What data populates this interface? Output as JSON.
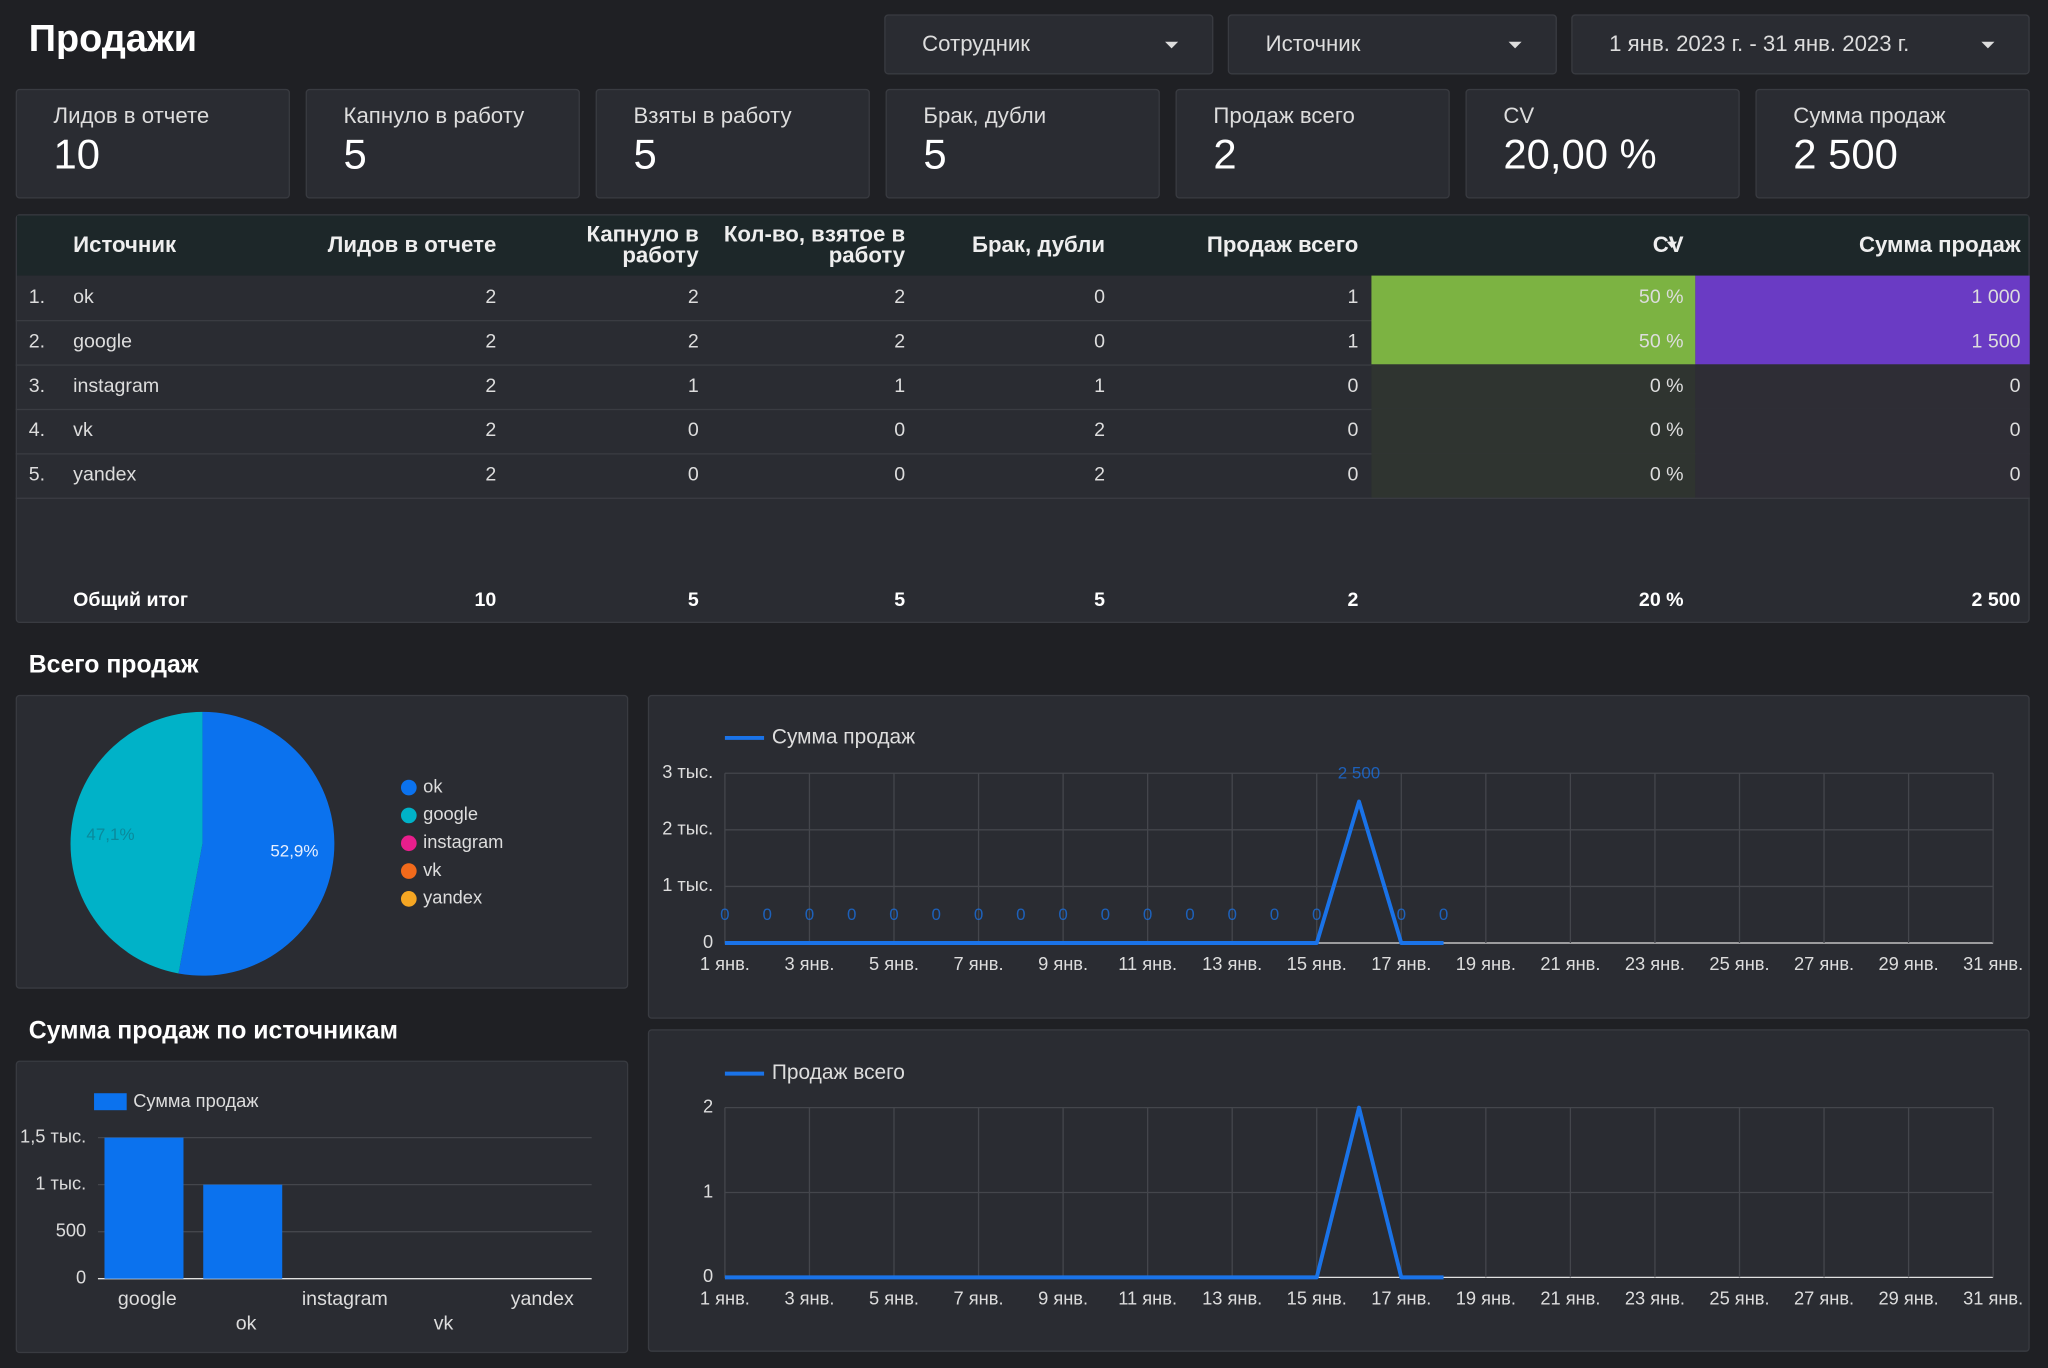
{
  "header": {
    "title": "Продажи",
    "filters": [
      "Сотрудник",
      "Источник",
      "1 янв. 2023 г. - 31 янв. 2023 г."
    ]
  },
  "kpis": [
    {
      "label": "Лидов в отчете",
      "value": "10"
    },
    {
      "label": "Капнуло в работу",
      "value": "5"
    },
    {
      "label": "Взяты в работу",
      "value": "5"
    },
    {
      "label": "Брак, дубли",
      "value": "5"
    },
    {
      "label": "Продаж всего",
      "value": "2"
    },
    {
      "label": "CV",
      "value": "20,00 %"
    },
    {
      "label": "Сумма продаж",
      "value": "2 500"
    }
  ],
  "table": {
    "columns": [
      "Источник",
      "Лидов в отчете",
      "Капнуло в работу",
      "Кол-во, взятое в работу",
      "Брак, дубли",
      "Продаж всего",
      "CV",
      "Сумма продаж"
    ],
    "rows": [
      {
        "index": "1.",
        "cells": [
          "ok",
          "2",
          "2",
          "2",
          "0",
          "1",
          "50 %",
          "1 000"
        ]
      },
      {
        "index": "2.",
        "cells": [
          "google",
          "2",
          "2",
          "2",
          "0",
          "1",
          "50 %",
          "1 500"
        ]
      },
      {
        "index": "3.",
        "cells": [
          "instagram",
          "2",
          "1",
          "1",
          "1",
          "0",
          "0 %",
          "0"
        ]
      },
      {
        "index": "4.",
        "cells": [
          "vk",
          "2",
          "0",
          "0",
          "2",
          "0",
          "0 %",
          "0"
        ]
      },
      {
        "index": "5.",
        "cells": [
          "yandex",
          "2",
          "0",
          "0",
          "2",
          "0",
          "0 %",
          "0"
        ]
      }
    ],
    "total": [
      "Общий итог",
      "10",
      "5",
      "5",
      "5",
      "2",
      "20 %",
      "2 500"
    ]
  },
  "sections": [
    "Всего продаж",
    "Сумма продаж по источникам"
  ],
  "chart_data": [
    {
      "type": "pie",
      "categories": [
        "ok",
        "google",
        "instagram",
        "vk",
        "yandex"
      ],
      "values": [
        52.9,
        47.1,
        0,
        0,
        0
      ],
      "value_labels": [
        "52,9%",
        "47,1%",
        null,
        null,
        null
      ],
      "colors": [
        "#0b72ee",
        "#00b2c8",
        "#e91e8c",
        "#f26a1b",
        "#f5a623"
      ]
    },
    {
      "type": "line",
      "categories": [
        "1 янв.",
        null,
        "3 янв.",
        null,
        "5 янв.",
        null,
        "7 янв.",
        null,
        "9 янв.",
        null,
        "11 янв.",
        null,
        "13 янв.",
        null,
        "15 янв.",
        null,
        "17 янв.",
        null,
        "19 янв.",
        null,
        "21 янв.",
        null,
        "23 янв.",
        null,
        "25 янв.",
        null,
        "27 янв.",
        null,
        "29 янв.",
        null,
        "31 янв."
      ],
      "series": [
        {
          "name": "Сумма продаж",
          "color": "#1a73e8",
          "values": [
            0,
            0,
            0,
            0,
            0,
            0,
            0,
            0,
            0,
            0,
            0,
            0,
            0,
            0,
            0,
            2500,
            0,
            0,
            null,
            null,
            null,
            null,
            null,
            null,
            null,
            null,
            null,
            null,
            null,
            null,
            null
          ],
          "value_labels": [
            "0",
            "0",
            "0",
            "0",
            "0",
            "0",
            "0",
            "0",
            "0",
            "0",
            "0",
            "0",
            "0",
            "0",
            "0",
            "2 500",
            "0",
            "0",
            null,
            null,
            null,
            null,
            null,
            null,
            null,
            null,
            null,
            null,
            null,
            null,
            null
          ]
        }
      ],
      "ylim": [
        0,
        3000
      ],
      "yticks": [
        0,
        {
          "value": 1000,
          "label": "1 тыс."
        },
        {
          "value": 2000,
          "label": "2 тыс."
        },
        {
          "value": 3000,
          "label": "3 тыс."
        }
      ],
      "grid": true
    },
    {
      "type": "line",
      "categories": [
        "1 янв.",
        null,
        "3 янв.",
        null,
        "5 янв.",
        null,
        "7 янв.",
        null,
        "9 янв.",
        null,
        "11 янв.",
        null,
        "13 янв.",
        null,
        "15 янв.",
        null,
        "17 янв.",
        null,
        "19 янв.",
        null,
        "21 янв.",
        null,
        "23 янв.",
        null,
        "25 янв.",
        null,
        "27 янв.",
        null,
        "29 янв.",
        null,
        "31 янв."
      ],
      "series": [
        {
          "name": "Продаж всего",
          "color": "#1a73e8",
          "values": [
            0,
            0,
            0,
            0,
            0,
            0,
            0,
            0,
            0,
            0,
            0,
            0,
            0,
            0,
            0,
            2,
            0,
            0,
            null,
            null,
            null,
            null,
            null,
            null,
            null,
            null,
            null,
            null,
            null,
            null,
            null
          ]
        }
      ],
      "ylim": [
        0,
        2
      ],
      "yticks": [
        0,
        1,
        2
      ],
      "grid": true
    },
    {
      "type": "bar",
      "categories": [
        "google",
        "ok",
        "instagram",
        "vk",
        "yandex"
      ],
      "series": [
        {
          "name": "Сумма продаж",
          "color": "#0b72ee",
          "values": [
            1500,
            1000,
            0,
            0,
            0
          ]
        }
      ],
      "ylim": [
        0,
        1500
      ],
      "yticks": [
        0,
        500,
        {
          "value": 1000,
          "label": "1 тыс."
        },
        {
          "value": 1500,
          "label": "1,5 тыс."
        }
      ],
      "grid": true
    }
  ]
}
